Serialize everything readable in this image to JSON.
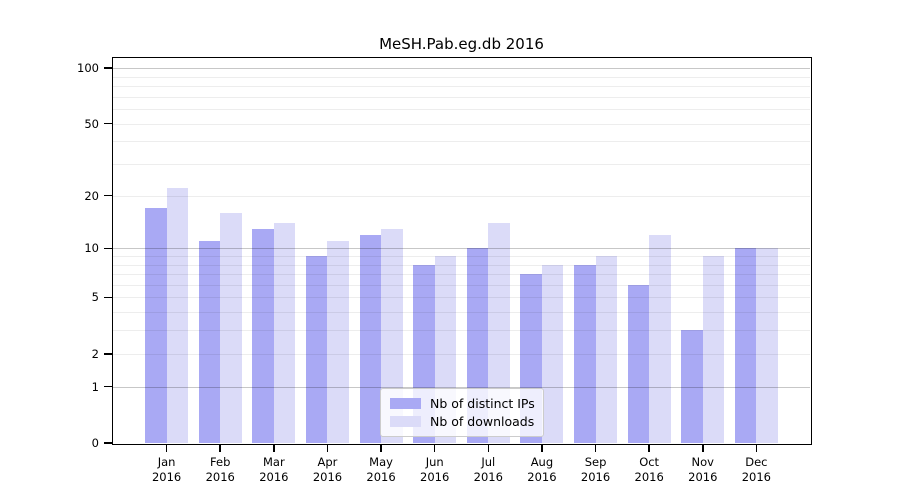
{
  "chart_data": {
    "type": "bar",
    "title": "MeSH.Pab.eg.db 2016",
    "x": {
      "categories": [
        {
          "month": "Jan",
          "year": "2016"
        },
        {
          "month": "Feb",
          "year": "2016"
        },
        {
          "month": "Mar",
          "year": "2016"
        },
        {
          "month": "Apr",
          "year": "2016"
        },
        {
          "month": "May",
          "year": "2016"
        },
        {
          "month": "Jun",
          "year": "2016"
        },
        {
          "month": "Jul",
          "year": "2016"
        },
        {
          "month": "Aug",
          "year": "2016"
        },
        {
          "month": "Sep",
          "year": "2016"
        },
        {
          "month": "Oct",
          "year": "2016"
        },
        {
          "month": "Nov",
          "year": "2016"
        },
        {
          "month": "Dec",
          "year": "2016"
        }
      ]
    },
    "series": [
      {
        "name": "Nb of distinct IPs",
        "color": "#a9a9f4",
        "values": [
          17,
          11,
          13,
          9,
          12,
          8,
          10,
          7,
          8,
          6,
          3,
          10
        ]
      },
      {
        "name": "Nb of downloads",
        "color": "#dbdbf8",
        "values": [
          22,
          16,
          14,
          11,
          13,
          9,
          14,
          8,
          9,
          12,
          9,
          10
        ]
      }
    ],
    "yaxis": {
      "scale": "log1p",
      "tick_labels": [
        100,
        50,
        20,
        10,
        5,
        2,
        1,
        0
      ],
      "major_gridlines": [
        1,
        10,
        100
      ],
      "minor_gridlines": [
        2,
        3,
        4,
        5,
        6,
        7,
        8,
        9,
        20,
        30,
        40,
        50,
        60,
        70,
        80,
        90
      ],
      "ylim": [
        0,
        115
      ]
    },
    "legend_position": "lower center",
    "grid": "on"
  }
}
